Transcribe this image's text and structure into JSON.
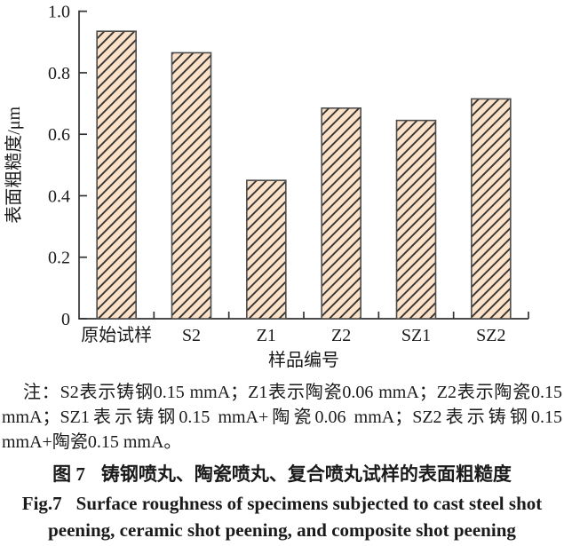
{
  "chart_data": {
    "type": "bar",
    "categories": [
      "原始试样",
      "S2",
      "Z1",
      "Z2",
      "SZ1",
      "SZ2"
    ],
    "values": [
      0.935,
      0.865,
      0.45,
      0.685,
      0.645,
      0.715
    ],
    "title": "",
    "xlabel": "样品编号",
    "ylabel": "表面粗糙度/μm",
    "ylim": [
      0,
      1.0
    ],
    "yticks": [
      "0",
      "0.2",
      "0.4",
      "0.6",
      "0.8",
      "1.0"
    ],
    "grid": false,
    "legend": "none",
    "bar_fill": "#FAE1C8",
    "hatch_style": "diagonal-forward-slash",
    "hatch_color": "#2b2b2b",
    "bar_border": "#4d4d4d",
    "axis_color": "#333333"
  },
  "note": {
    "prefix": "注：",
    "text": "S2表示铸钢0.15 mmA；Z1表示陶瓷0.06 mmA；Z2表示陶瓷0.15 mmA；SZ1表示铸钢0.15 mmA+陶瓷0.06 mmA；SZ2表示铸钢0.15 mmA+陶瓷0.15 mmA。"
  },
  "caption": {
    "zh_label": "图 7",
    "zh_text": "铸钢喷丸、陶瓷喷丸、复合喷丸试样的表面粗糙度",
    "en_label": "Fig.7",
    "en_line1": "Surface roughness of specimens subjected to cast steel shot",
    "en_line2": "peening, ceramic shot peening, and composite shot peening"
  }
}
